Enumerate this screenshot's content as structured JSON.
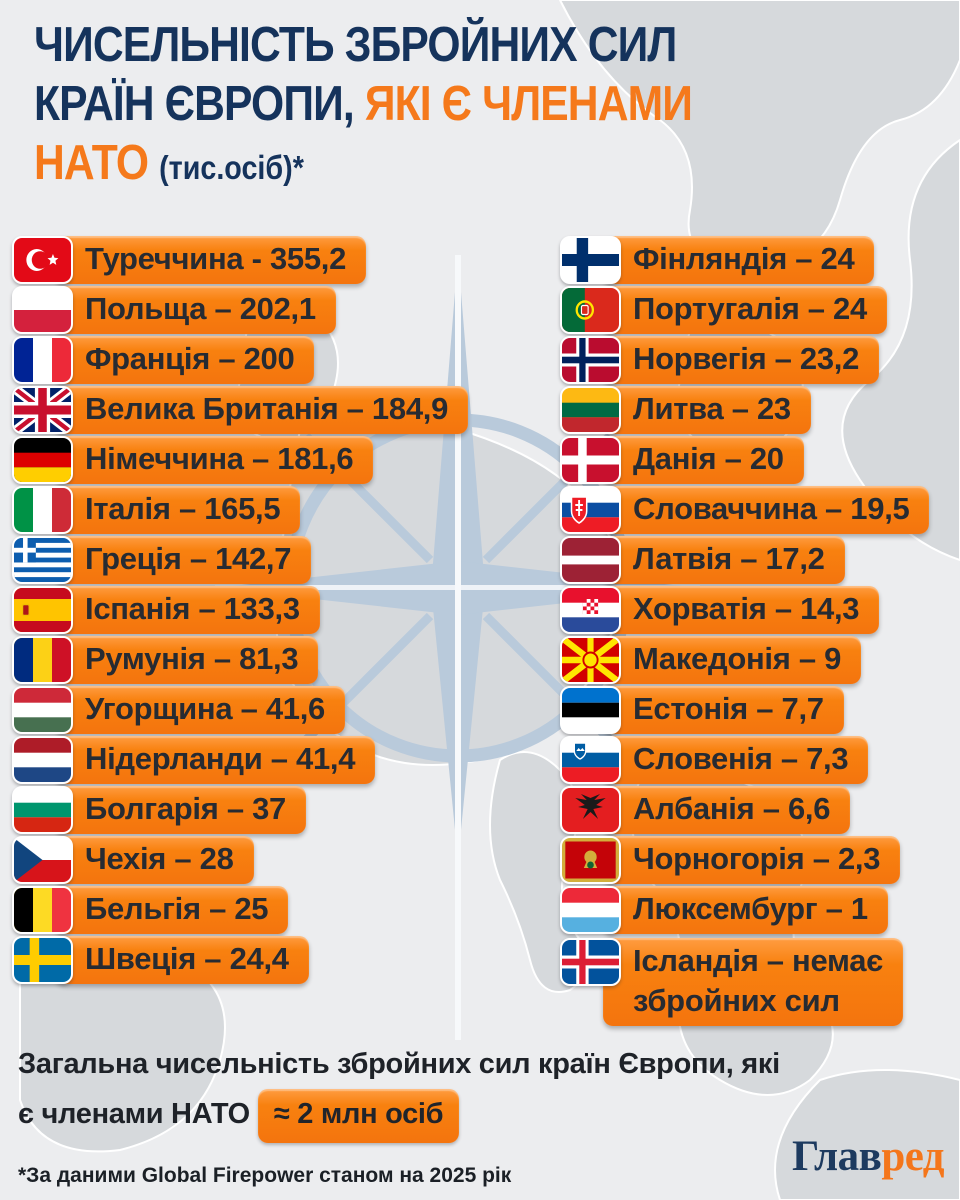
{
  "title": {
    "line1": "ЧИСЕЛЬНІСТЬ ЗБРОЙНИХ СИЛ",
    "line2_dark": "КРАЇН ЄВРОПИ, ",
    "line2_orange": "ЯКІ Є ЧЛЕНАМИ",
    "line3_orange": "НАТО ",
    "line3_unit": "(тис.осіб)*"
  },
  "columns": {
    "left": [
      {
        "flag": "turkey",
        "label": "Туреччина - 355,2"
      },
      {
        "flag": "poland",
        "label": "Польща – 202,1"
      },
      {
        "flag": "france",
        "label": "Франція – 200"
      },
      {
        "flag": "uk",
        "label": "Велика Британія – 184,9"
      },
      {
        "flag": "germany",
        "label": "Німеччина – 181,6"
      },
      {
        "flag": "italy",
        "label": "Італія – 165,5"
      },
      {
        "flag": "greece",
        "label": "Греція – 142,7"
      },
      {
        "flag": "spain",
        "label": "Іспанія – 133,3"
      },
      {
        "flag": "romania",
        "label": "Румунія – 81,3"
      },
      {
        "flag": "hungary",
        "label": "Угорщина – 41,6"
      },
      {
        "flag": "netherlands",
        "label": "Нідерланди – 41,4"
      },
      {
        "flag": "bulgaria",
        "label": "Болгарія – 37"
      },
      {
        "flag": "czechia",
        "label": "Чехія – 28"
      },
      {
        "flag": "belgium",
        "label": "Бельгія – 25"
      },
      {
        "flag": "sweden",
        "label": "Швеція – 24,4"
      }
    ],
    "right": [
      {
        "flag": "finland",
        "label": "Фінляндія – 24"
      },
      {
        "flag": "portugal",
        "label": "Португалія – 24"
      },
      {
        "flag": "norway",
        "label": "Норвегія – 23,2"
      },
      {
        "flag": "lithuania",
        "label": "Литва – 23"
      },
      {
        "flag": "denmark",
        "label": "Данія – 20"
      },
      {
        "flag": "slovakia",
        "label": "Словаччина – 19,5"
      },
      {
        "flag": "latvia",
        "label": "Латвія – 17,2"
      },
      {
        "flag": "croatia",
        "label": "Хорватія – 14,3"
      },
      {
        "flag": "macedonia",
        "label": "Македонія – 9"
      },
      {
        "flag": "estonia",
        "label": "Естонія – 7,7"
      },
      {
        "flag": "slovenia",
        "label": "Словенія – 7,3"
      },
      {
        "flag": "albania",
        "label": "Албанія – 6,6"
      },
      {
        "flag": "montenegro",
        "label": "Чорногорія – 2,3"
      },
      {
        "flag": "luxembourg",
        "label": "Люксембург – 1"
      },
      {
        "flag": "iceland",
        "label": "Ісландія – немає\nзбройних сил",
        "tall": true
      }
    ]
  },
  "summary": {
    "text": "Загальна чисельність збройних сил країн Європи, які є членами НАТО",
    "badge": "≈ 2 млн осіб"
  },
  "footnote": "*За даними Global Firepower станом на 2025 рік",
  "logo": {
    "part1": "Глав",
    "part2": "ред"
  },
  "colors": {
    "accent_orange": "#f5791b",
    "title_navy": "#15335c",
    "pill_text": "#272b32",
    "pill_gradient_top": "#ff9d42",
    "pill_gradient_bottom": "#f4740e",
    "map_land": "#d6d9dc",
    "compass_blue": "#b9cadb"
  },
  "chart_data": {
    "type": "table",
    "title": "ЧИСЕЛЬНІСТЬ ЗБРОЙНИХ СИЛ КРАЇН ЄВРОПИ, ЯКІ Є ЧЛЕНАМИ НАТО",
    "unit": "тис. осіб",
    "footnote": "*За даними Global Firepower станом на 2025 рік",
    "total_note": "Загальна чисельність збройних сил країн Європи, які є членами НАТО ≈ 2 млн осіб",
    "rows": [
      {
        "country": "Туреччина",
        "value": 355.2
      },
      {
        "country": "Польща",
        "value": 202.1
      },
      {
        "country": "Франція",
        "value": 200
      },
      {
        "country": "Велика Британія",
        "value": 184.9
      },
      {
        "country": "Німеччина",
        "value": 181.6
      },
      {
        "country": "Італія",
        "value": 165.5
      },
      {
        "country": "Греція",
        "value": 142.7
      },
      {
        "country": "Іспанія",
        "value": 133.3
      },
      {
        "country": "Румунія",
        "value": 81.3
      },
      {
        "country": "Угорщина",
        "value": 41.6
      },
      {
        "country": "Нідерланди",
        "value": 41.4
      },
      {
        "country": "Болгарія",
        "value": 37
      },
      {
        "country": "Чехія",
        "value": 28
      },
      {
        "country": "Бельгія",
        "value": 25
      },
      {
        "country": "Швеція",
        "value": 24.4
      },
      {
        "country": "Фінляндія",
        "value": 24
      },
      {
        "country": "Португалія",
        "value": 24
      },
      {
        "country": "Норвегія",
        "value": 23.2
      },
      {
        "country": "Литва",
        "value": 23
      },
      {
        "country": "Данія",
        "value": 20
      },
      {
        "country": "Словаччина",
        "value": 19.5
      },
      {
        "country": "Латвія",
        "value": 17.2
      },
      {
        "country": "Хорватія",
        "value": 14.3
      },
      {
        "country": "Македонія",
        "value": 9
      },
      {
        "country": "Естонія",
        "value": 7.7
      },
      {
        "country": "Словенія",
        "value": 7.3
      },
      {
        "country": "Албанія",
        "value": 6.6
      },
      {
        "country": "Чорногорія",
        "value": 2.3
      },
      {
        "country": "Люксембург",
        "value": 1
      },
      {
        "country": "Ісландія",
        "value": null,
        "note": "немає збройних сил"
      }
    ]
  }
}
